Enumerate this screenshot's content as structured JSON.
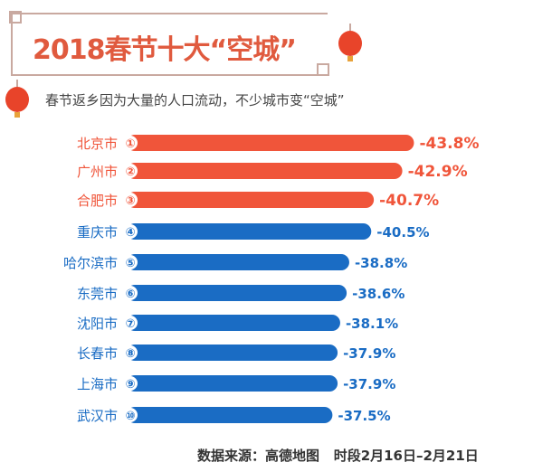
{
  "header": {
    "title": "2018春节十大“空城”",
    "subtitle": "春节返乡因为大量的人口流动，不少城市变“空城”"
  },
  "footer": {
    "source": "数据来源：高德地图",
    "period": "时段2月16日–2月21日"
  },
  "colors": {
    "top3": "#f0553a",
    "rest": "#1a6cc4"
  },
  "chart_data": {
    "type": "bar",
    "orientation": "horizontal",
    "categories": [
      "北京市",
      "广州市",
      "合肥市",
      "重庆市",
      "哈尔滨市",
      "东莞市",
      "沈阳市",
      "长春市",
      "上海市",
      "武汉市"
    ],
    "ranks": [
      "①",
      "②",
      "③",
      "④",
      "⑤",
      "⑥",
      "⑦",
      "⑧",
      "⑨",
      "⑩"
    ],
    "values": [
      -43.8,
      -42.9,
      -40.7,
      -40.5,
      -38.8,
      -38.6,
      -38.1,
      -37.9,
      -37.9,
      -37.5
    ],
    "labels": [
      "-43.8%",
      "-42.9%",
      "-40.7%",
      "-40.5%",
      "-38.8%",
      "-38.6%",
      "-38.1%",
      "-37.9%",
      "-37.9%",
      "-37.5%"
    ],
    "title": "2018春节十大“空城”",
    "grid": false
  }
}
